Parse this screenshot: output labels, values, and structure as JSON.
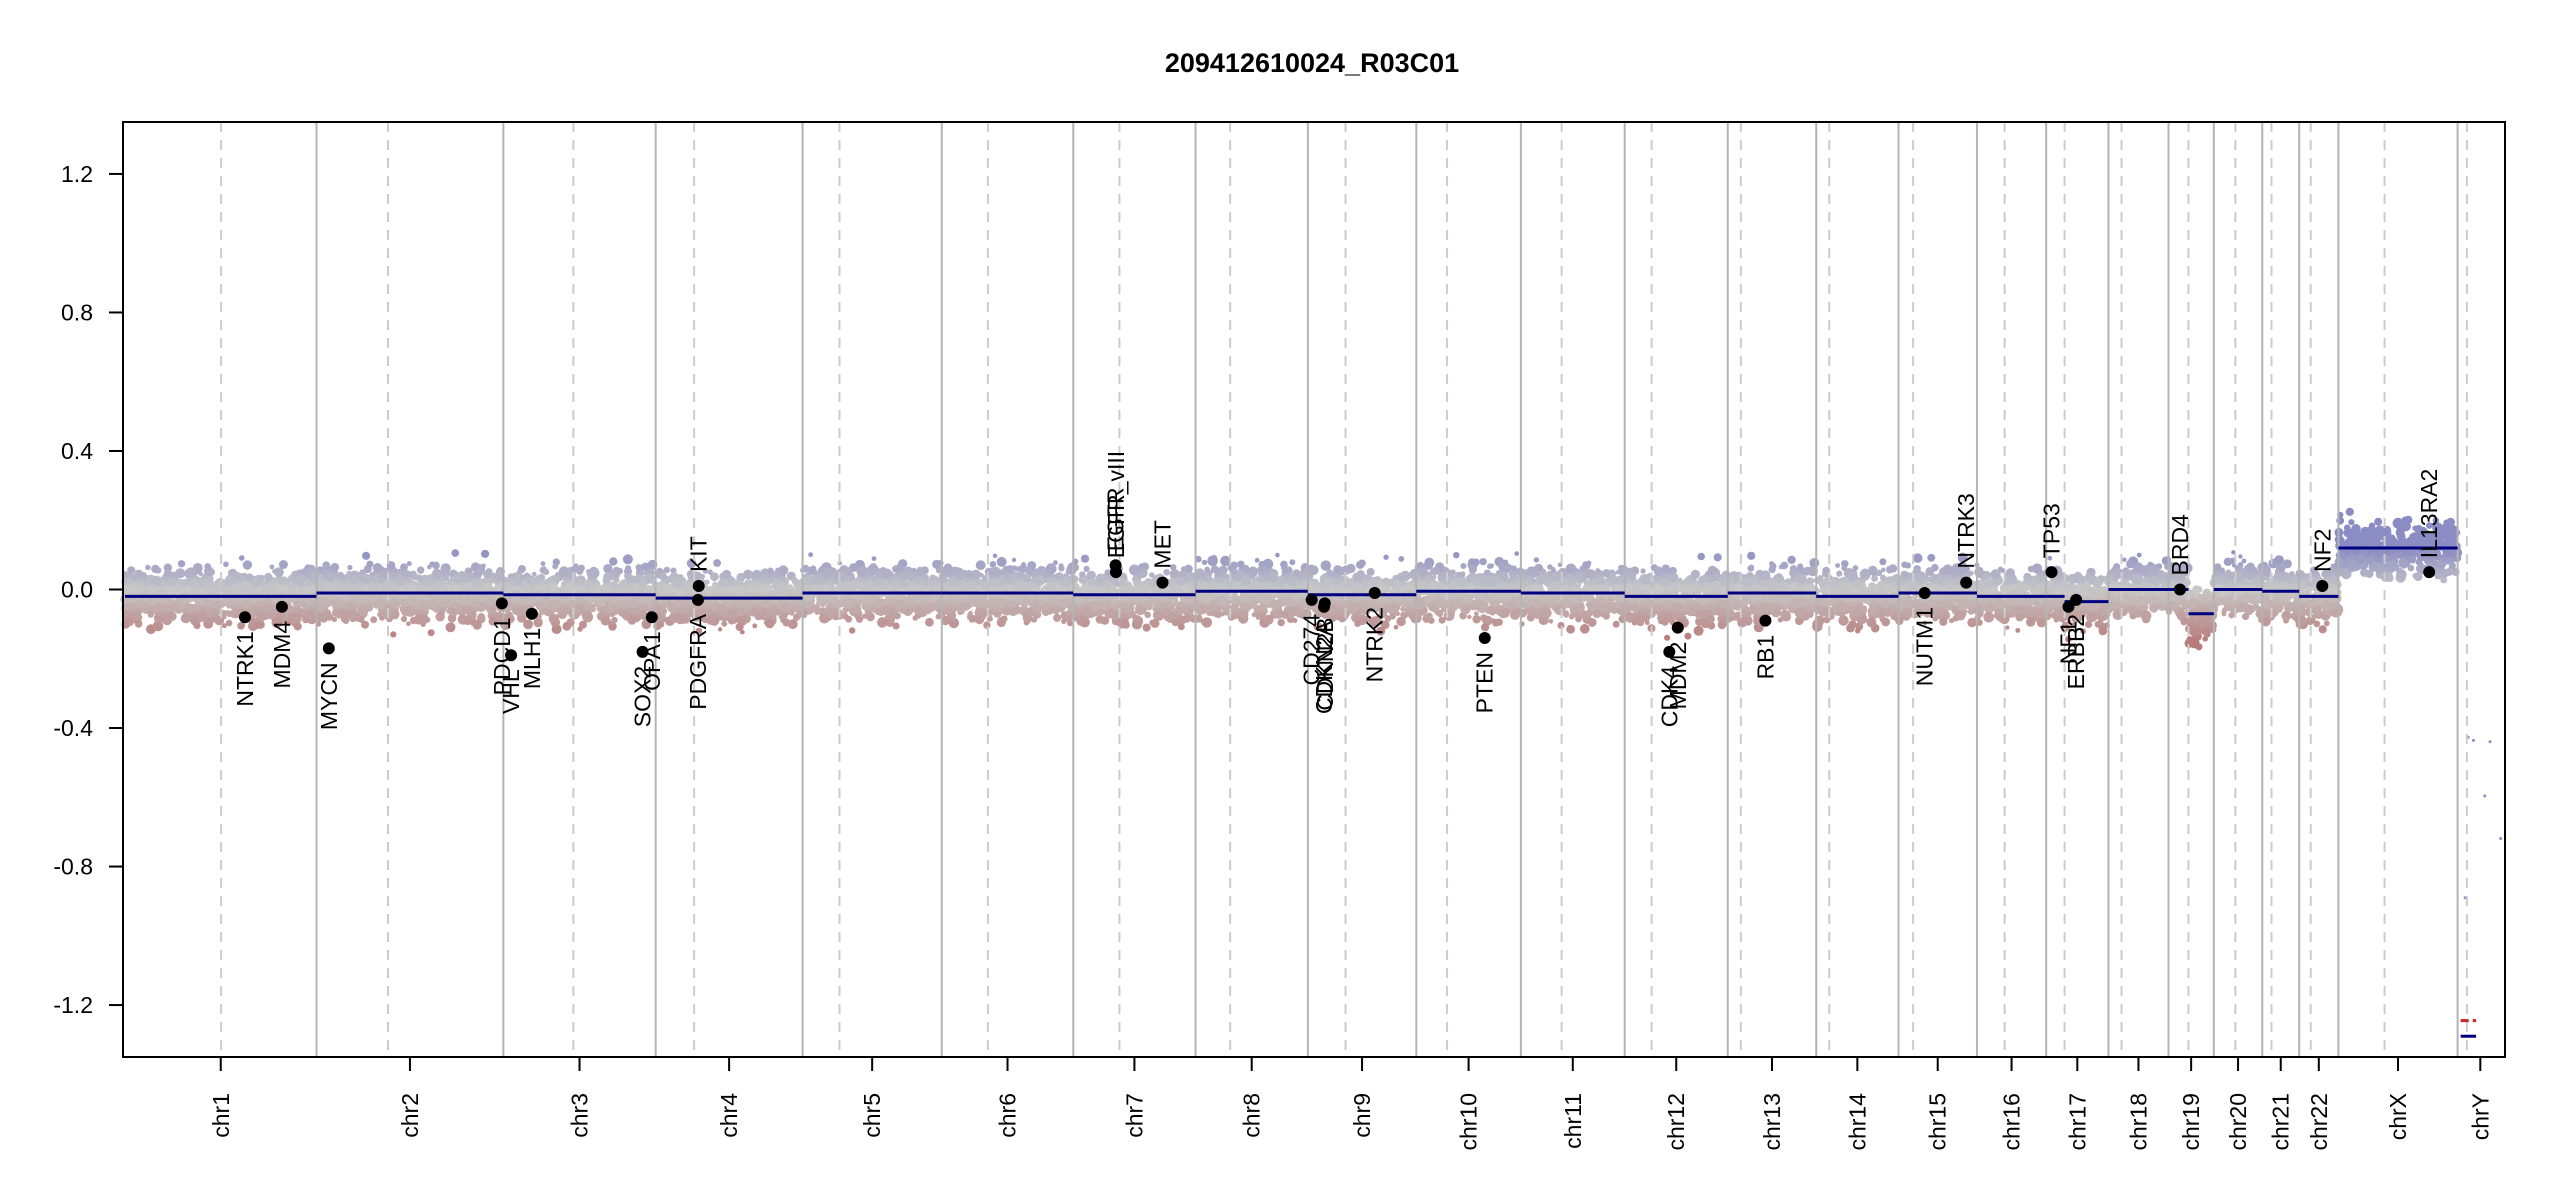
{
  "chart_data": {
    "type": "scatter",
    "title": "209412610024_R03C01",
    "xlabel": "",
    "ylabel": "",
    "ylim": [
      -1.35,
      1.35
    ],
    "yticks": [
      -1.2,
      -0.8,
      -0.4,
      0.0,
      0.4,
      0.8,
      1.2
    ],
    "ytick_labels": [
      "-1.2",
      "-0.8",
      "-0.4",
      "0.0",
      "0.4",
      "0.8",
      "1.2"
    ],
    "grid": false,
    "colors": {
      "gain": "#8c8cc4",
      "neutral": "#c8c8c8",
      "loss": "#b87b7b",
      "segment": "#000080",
      "chr_line": "#b4b4b4",
      "arm_line": "#cccccc",
      "gene_dot": "#000000",
      "loss_marker": "#cc2222"
    },
    "chromosomes": [
      {
        "name": "chr1",
        "len": 249,
        "cen": 125,
        "seg": [
          [
            0,
            249,
            -0.02
          ]
        ]
      },
      {
        "name": "chr2",
        "len": 243,
        "cen": 93,
        "seg": [
          [
            0,
            243,
            -0.01
          ]
        ]
      },
      {
        "name": "chr3",
        "len": 198,
        "cen": 91,
        "seg": [
          [
            0,
            198,
            -0.015
          ]
        ]
      },
      {
        "name": "chr4",
        "len": 191,
        "cen": 50,
        "seg": [
          [
            0,
            191,
            -0.025
          ]
        ]
      },
      {
        "name": "chr5",
        "len": 181,
        "cen": 48,
        "seg": [
          [
            0,
            181,
            -0.01
          ]
        ]
      },
      {
        "name": "chr6",
        "len": 171,
        "cen": 60,
        "seg": [
          [
            0,
            171,
            -0.01
          ]
        ]
      },
      {
        "name": "chr7",
        "len": 159,
        "cen": 60,
        "seg": [
          [
            0,
            159,
            -0.015
          ]
        ]
      },
      {
        "name": "chr8",
        "len": 146,
        "cen": 45,
        "seg": [
          [
            0,
            146,
            -0.005
          ]
        ]
      },
      {
        "name": "chr9",
        "len": 141,
        "cen": 49,
        "seg": [
          [
            0,
            141,
            -0.015
          ]
        ]
      },
      {
        "name": "chr10",
        "len": 136,
        "cen": 40,
        "seg": [
          [
            0,
            136,
            -0.005
          ]
        ]
      },
      {
        "name": "chr11",
        "len": 135,
        "cen": 53,
        "seg": [
          [
            0,
            135,
            -0.01
          ]
        ]
      },
      {
        "name": "chr12",
        "len": 134,
        "cen": 35,
        "seg": [
          [
            0,
            134,
            -0.02
          ]
        ]
      },
      {
        "name": "chr13",
        "len": 115,
        "cen": 17,
        "seg": [
          [
            0,
            115,
            -0.01
          ]
        ]
      },
      {
        "name": "chr14",
        "len": 107,
        "cen": 17,
        "seg": [
          [
            0,
            107,
            -0.02
          ]
        ]
      },
      {
        "name": "chr15",
        "len": 102,
        "cen": 19,
        "seg": [
          [
            0,
            102,
            -0.01
          ]
        ]
      },
      {
        "name": "chr16",
        "len": 90,
        "cen": 36,
        "seg": [
          [
            0,
            90,
            -0.02
          ]
        ]
      },
      {
        "name": "chr17",
        "len": 81,
        "cen": 24,
        "seg": [
          [
            0,
            24,
            -0.02
          ],
          [
            24,
            81,
            -0.035
          ]
        ]
      },
      {
        "name": "chr18",
        "len": 78,
        "cen": 17,
        "seg": [
          [
            0,
            78,
            0.0
          ]
        ]
      },
      {
        "name": "chr19",
        "len": 59,
        "cen": 26,
        "seg": [
          [
            0,
            26,
            0.0
          ],
          [
            26,
            59,
            -0.07
          ]
        ]
      },
      {
        "name": "chr20",
        "len": 63,
        "cen": 28,
        "seg": [
          [
            0,
            63,
            0.0
          ]
        ]
      },
      {
        "name": "chr21",
        "len": 48,
        "cen": 12,
        "seg": [
          [
            0,
            48,
            -0.005
          ]
        ]
      },
      {
        "name": "chr22",
        "len": 51,
        "cen": 15,
        "seg": [
          [
            0,
            51,
            -0.02
          ]
        ]
      },
      {
        "name": "chrX",
        "len": 155,
        "cen": 60,
        "seg": [
          [
            0,
            155,
            0.12
          ]
        ]
      },
      {
        "name": "chrY",
        "len": 59,
        "cen": 12,
        "seg": []
      }
    ],
    "genes": [
      {
        "name": "NTRK1",
        "chr": "chr1",
        "pos": 156,
        "value": -0.08
      },
      {
        "name": "MDM4",
        "chr": "chr1",
        "pos": 204,
        "value": -0.05
      },
      {
        "name": "MYCN",
        "chr": "chr2",
        "pos": 16,
        "value": -0.17
      },
      {
        "name": "PDCD1",
        "chr": "chr2",
        "pos": 241,
        "value": -0.04
      },
      {
        "name": "VHL",
        "chr": "chr3",
        "pos": 10,
        "value": -0.19
      },
      {
        "name": "MLH1",
        "chr": "chr3",
        "pos": 37,
        "value": -0.07
      },
      {
        "name": "SOX2",
        "chr": "chr3",
        "pos": 181,
        "value": -0.18
      },
      {
        "name": "OPA1",
        "chr": "chr3",
        "pos": 193,
        "value": -0.08
      },
      {
        "name": "PDGFRA",
        "chr": "chr4",
        "pos": 55,
        "value": -0.03
      },
      {
        "name": "KIT",
        "chr": "chr4",
        "pos": 56,
        "value": 0.01
      },
      {
        "name": "EGFR",
        "chr": "chr7",
        "pos": 55,
        "value": 0.07
      },
      {
        "name": "EGFR_vIII",
        "chr": "chr7",
        "pos": 55.5,
        "value": 0.05
      },
      {
        "name": "MET",
        "chr": "chr7",
        "pos": 116,
        "value": 0.02
      },
      {
        "name": "CD274",
        "chr": "chr9",
        "pos": 5,
        "value": -0.03
      },
      {
        "name": "CDKN2A",
        "chr": "chr9",
        "pos": 21,
        "value": -0.05
      },
      {
        "name": "CDKN2B",
        "chr": "chr9",
        "pos": 22,
        "value": -0.04
      },
      {
        "name": "NTRK2",
        "chr": "chr9",
        "pos": 87,
        "value": -0.01
      },
      {
        "name": "PTEN",
        "chr": "chr10",
        "pos": 89,
        "value": -0.14
      },
      {
        "name": "CDK4",
        "chr": "chr12",
        "pos": 58,
        "value": -0.18
      },
      {
        "name": "MDM2",
        "chr": "chr12",
        "pos": 69,
        "value": -0.11
      },
      {
        "name": "RB1",
        "chr": "chr13",
        "pos": 49,
        "value": -0.09
      },
      {
        "name": "NUTM1",
        "chr": "chr15",
        "pos": 34,
        "value": -0.01
      },
      {
        "name": "NTRK3",
        "chr": "chr15",
        "pos": 88,
        "value": 0.02
      },
      {
        "name": "TP53",
        "chr": "chr17",
        "pos": 7,
        "value": 0.05
      },
      {
        "name": "NF1",
        "chr": "chr17",
        "pos": 29,
        "value": -0.05
      },
      {
        "name": "ERBB2",
        "chr": "chr17",
        "pos": 39,
        "value": -0.03
      },
      {
        "name": "BRD4",
        "chr": "chr19",
        "pos": 15,
        "value": 0.0
      },
      {
        "name": "NF2",
        "chr": "chr22",
        "pos": 30,
        "value": 0.01
      },
      {
        "name": "IL13RA2",
        "chr": "chrX",
        "pos": 118,
        "value": 0.05
      }
    ]
  }
}
